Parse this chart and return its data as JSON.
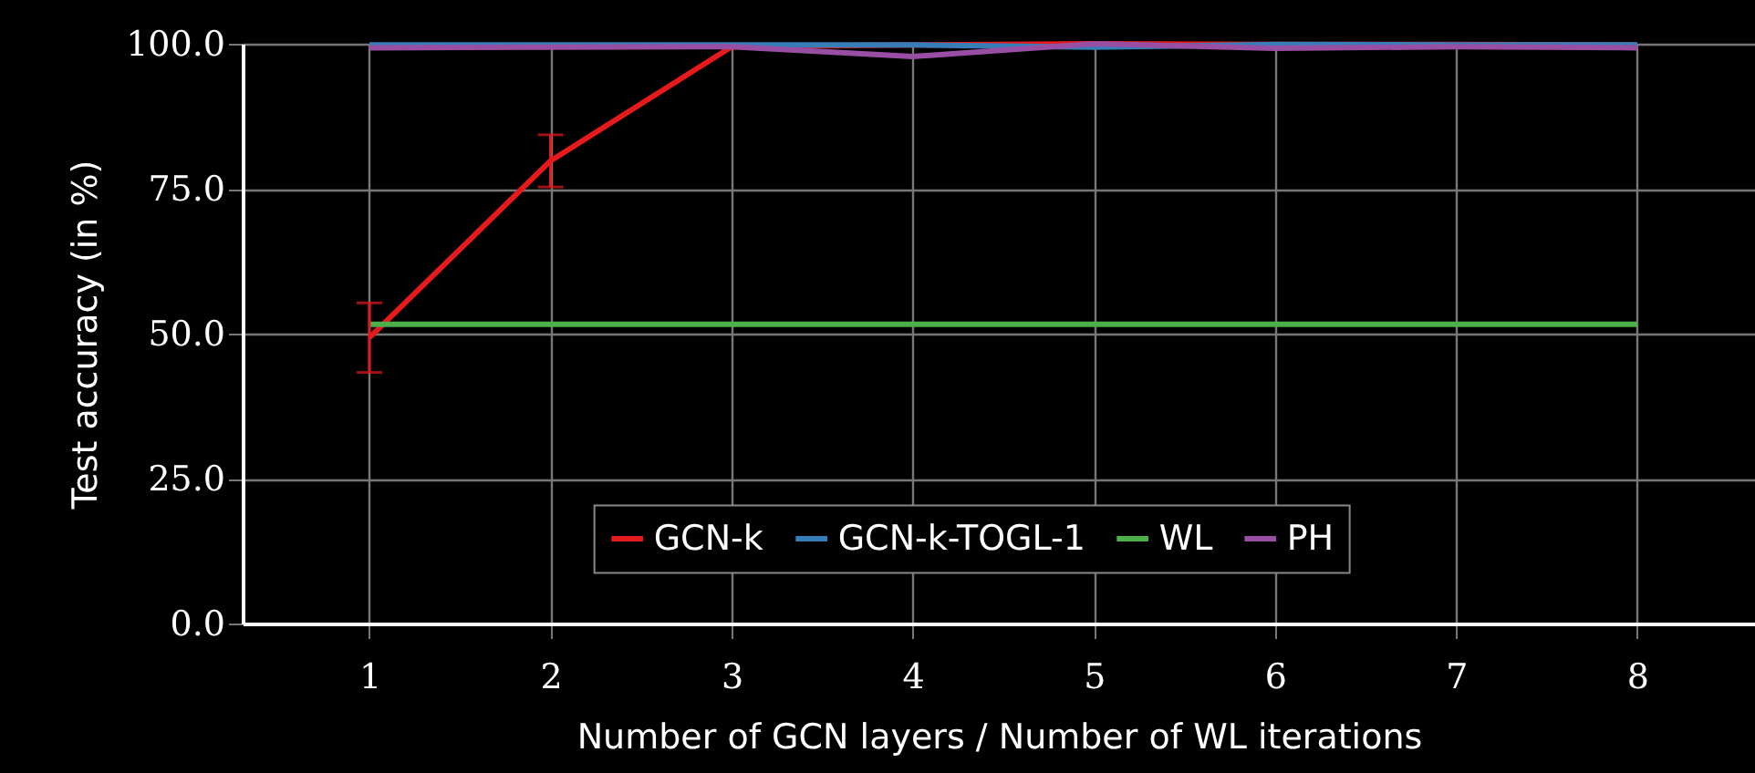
{
  "chart_data": {
    "type": "line",
    "xlabel": "Number of GCN layers / Number of WL iterations",
    "ylabel": "Test accuracy (in %)",
    "x": [
      1,
      2,
      3,
      4,
      5,
      6,
      7,
      8
    ],
    "series": [
      {
        "name": "GCN-k",
        "color": "#e41a1c",
        "values": [
          49.3,
          79.8,
          99.5,
          99.8,
          100,
          99.9,
          99.9,
          99.8
        ],
        "errors": [
          6,
          4.5,
          null,
          null,
          null,
          null,
          null,
          null
        ]
      },
      {
        "name": "GCN-k-TOGL-1",
        "color": "#377eb8",
        "values": [
          99.8,
          99.8,
          99.8,
          99.8,
          99.4,
          99.9,
          99.8,
          99.8
        ]
      },
      {
        "name": "WL",
        "color": "#4daf4a",
        "values": [
          51.6,
          51.6,
          51.6,
          51.6,
          51.6,
          51.6,
          51.6,
          51.6
        ]
      },
      {
        "name": "PH",
        "color": "#984ea3",
        "values": [
          99.3,
          99.4,
          99.5,
          97.8,
          100,
          99.2,
          99.5,
          99.3
        ]
      }
    ],
    "xlim": [
      0.3,
      8.65
    ],
    "xticks": [
      1,
      2,
      3,
      4,
      5,
      6,
      7,
      8
    ],
    "ylim": [
      0,
      100
    ],
    "yticks": [
      {
        "value": 0,
        "label": "0.0"
      },
      {
        "value": 25,
        "label": "25.0"
      },
      {
        "value": 50,
        "label": "50.0"
      },
      {
        "value": 75,
        "label": "75.0"
      },
      {
        "value": 100,
        "label": "100.0"
      }
    ],
    "grid": true,
    "legend": "bottom",
    "line_style": "solid"
  }
}
